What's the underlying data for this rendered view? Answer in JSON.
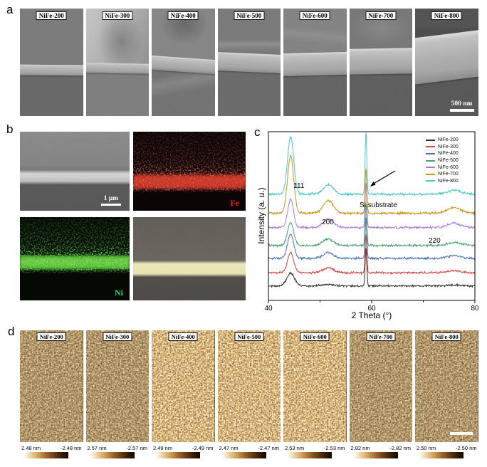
{
  "panels": {
    "a": {
      "label": "a",
      "tiles": [
        {
          "label": "NiFe-200"
        },
        {
          "label": "NiFe-300"
        },
        {
          "label": "NiFe-400"
        },
        {
          "label": "NiFe-500"
        },
        {
          "label": "NiFe-600"
        },
        {
          "label": "NiFe-700"
        },
        {
          "label": "NiFe-800",
          "scale_bar": "500 nm"
        }
      ]
    },
    "b": {
      "label": "b",
      "sem": {
        "scale_bar": "1 μm"
      },
      "fe": {
        "label": "Fe",
        "color": "#e2261a"
      },
      "ni": {
        "label": "Ni",
        "color": "#3bd05c"
      }
    },
    "c": {
      "label": "c"
    },
    "d": {
      "label": "d",
      "tiles": [
        {
          "label": "NiFe-200",
          "scale_max": "2.48 nm",
          "scale_min": "-2.48 nm"
        },
        {
          "label": "NiFe-300",
          "scale_max": "2.57 nm",
          "scale_min": "-2.57 nm"
        },
        {
          "label": "NiFe-400",
          "scale_max": "2.49 nm",
          "scale_min": "-2.49 nm"
        },
        {
          "label": "NiFe-500",
          "scale_max": "2.47 nm",
          "scale_min": "-2.47 nm"
        },
        {
          "label": "NiFe-600",
          "scale_max": "2.53 nm",
          "scale_min": "-2.53 nm"
        },
        {
          "label": "NiFe-700",
          "scale_max": "2.82 nm",
          "scale_min": "-2.82 nm"
        },
        {
          "label": "NiFe-800",
          "scale_max": "2.50 nm",
          "scale_min": "-2.50 nm",
          "has_scale_bar": true
        }
      ]
    }
  },
  "chart_data": {
    "type": "line",
    "title": "",
    "xlabel": "2 Theta (°)",
    "ylabel": "Intensity (a. u.)",
    "xlim": [
      40,
      80
    ],
    "xticks": [
      40,
      60,
      80
    ],
    "minor_xticks": [
      50,
      70
    ],
    "grid": false,
    "legend_position": "upper right",
    "peak_labels": [
      {
        "text": "111",
        "two_theta": 44.3
      },
      {
        "text": "200",
        "two_theta": 51.6
      },
      {
        "text": "Si substrate",
        "two_theta": 58.9,
        "arrow": true
      },
      {
        "text": "220",
        "two_theta": 76.0
      }
    ],
    "series": [
      {
        "name": "NiFe-200",
        "color": "#2f2f2f",
        "offset_au": 8.6,
        "noise_au": 0.8,
        "peaks": [
          {
            "two_theta": 44.3,
            "height_au": 7.5,
            "sigma": 0.75
          },
          {
            "two_theta": 51.6,
            "height_au": 0.9,
            "sigma": 1.1
          },
          {
            "two_theta": 58.9,
            "height_au": 22,
            "sigma": 0.16
          },
          {
            "two_theta": 76.0,
            "height_au": 0.4,
            "sigma": 1.3
          }
        ]
      },
      {
        "name": "NiFe-300",
        "color": "#cf4640",
        "offset_au": 16.4,
        "noise_au": 0.9,
        "peaks": [
          {
            "two_theta": 44.3,
            "height_au": 12,
            "sigma": 0.6
          },
          {
            "two_theta": 51.6,
            "height_au": 3.0,
            "sigma": 1.0
          },
          {
            "two_theta": 58.9,
            "height_au": 23,
            "sigma": 0.16
          },
          {
            "two_theta": 76.0,
            "height_au": 1.2,
            "sigma": 1.3
          }
        ]
      },
      {
        "name": "NiFe-400",
        "color": "#4c74ae",
        "offset_au": 24.9,
        "noise_au": 0.95,
        "peaks": [
          {
            "two_theta": 44.3,
            "height_au": 14.5,
            "sigma": 0.6
          },
          {
            "two_theta": 51.6,
            "height_au": 3.4,
            "sigma": 1.0
          },
          {
            "two_theta": 58.9,
            "height_au": 24,
            "sigma": 0.16
          },
          {
            "two_theta": 76.0,
            "height_au": 1.7,
            "sigma": 1.3
          }
        ]
      },
      {
        "name": "NiFe-500",
        "color": "#4aa16c",
        "offset_au": 32.6,
        "noise_au": 0.95,
        "peaks": [
          {
            "two_theta": 44.3,
            "height_au": 13.5,
            "sigma": 0.6
          },
          {
            "two_theta": 51.6,
            "height_au": 3.8,
            "sigma": 1.0
          },
          {
            "two_theta": 58.9,
            "height_au": 25,
            "sigma": 0.16
          },
          {
            "two_theta": 76.0,
            "height_au": 1.7,
            "sigma": 1.3
          }
        ]
      },
      {
        "name": "NiFe-600",
        "color": "#a87cd6",
        "offset_au": 43.2,
        "noise_au": 0.95,
        "peaks": [
          {
            "two_theta": 44.3,
            "height_au": 17,
            "sigma": 0.55
          },
          {
            "two_theta": 51.6,
            "height_au": 5.1,
            "sigma": 1.0
          },
          {
            "two_theta": 58.9,
            "height_au": 26,
            "sigma": 0.16
          },
          {
            "two_theta": 76.0,
            "height_au": 2.5,
            "sigma": 1.3
          }
        ]
      },
      {
        "name": "NiFe-700",
        "color": "#c2971f",
        "offset_au": 51.7,
        "noise_au": 1.0,
        "peaks": [
          {
            "two_theta": 44.3,
            "height_au": 34,
            "sigma": 0.6
          },
          {
            "two_theta": 51.6,
            "height_au": 7.6,
            "sigma": 0.95
          },
          {
            "two_theta": 58.9,
            "height_au": 27,
            "sigma": 0.16
          },
          {
            "two_theta": 76.0,
            "height_au": 3.4,
            "sigma": 1.3
          }
        ]
      },
      {
        "name": "NiFe-800",
        "color": "#52c7c0",
        "offset_au": 63.0,
        "noise_au": 1.0,
        "peaks": [
          {
            "two_theta": 44.3,
            "height_au": 34,
            "sigma": 0.6
          },
          {
            "two_theta": 51.6,
            "height_au": 5.5,
            "sigma": 0.95
          },
          {
            "two_theta": 58.9,
            "height_au": 37,
            "sigma": 0.16
          },
          {
            "two_theta": 76.0,
            "height_au": 2.1,
            "sigma": 1.3
          }
        ]
      }
    ]
  }
}
